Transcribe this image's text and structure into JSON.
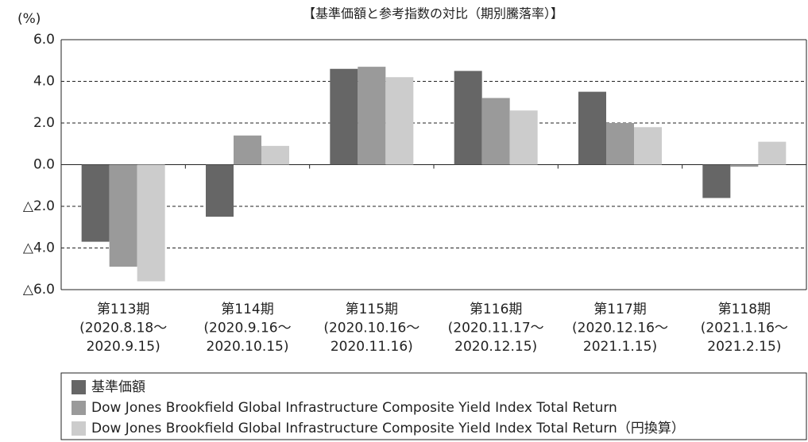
{
  "chart_data": {
    "type": "bar",
    "title": "【基準価額と参考指数の対比（期別騰落率）】",
    "y_axis_label": "(%)",
    "categories": [
      [
        "第113期",
        "(2020.8.18～",
        "2020.9.15)"
      ],
      [
        "第114期",
        "(2020.9.16～",
        "2020.10.15)"
      ],
      [
        "第115期",
        "(2020.10.16～",
        "2020.11.16)"
      ],
      [
        "第116期",
        "(2020.11.17～",
        "2020.12.15)"
      ],
      [
        "第117期",
        "(2020.12.16～",
        "2021.1.15)"
      ],
      [
        "第118期",
        "(2021.1.16～",
        "2021.2.15)"
      ]
    ],
    "series": [
      {
        "name": "基準価額",
        "color": "#666666",
        "values": [
          -3.7,
          -2.5,
          4.6,
          4.5,
          3.5,
          -1.6
        ]
      },
      {
        "name": "Dow Jones Brookfield Global Infrastructure Composite Yield Index Total Return",
        "color": "#9a9a9a",
        "values": [
          -4.9,
          1.4,
          4.7,
          3.2,
          2.0,
          -0.1
        ]
      },
      {
        "name": "Dow Jones Brookfield Global Infrastructure Composite Yield Index Total Return（円換算）",
        "color": "#cccccc",
        "values": [
          -5.6,
          0.9,
          4.2,
          2.6,
          1.8,
          1.1
        ]
      }
    ],
    "ylim": [
      -6,
      6
    ],
    "yticks": [
      {
        "value": 6,
        "label": "6.0"
      },
      {
        "value": 4,
        "label": "4.0"
      },
      {
        "value": 2,
        "label": "2.0"
      },
      {
        "value": 0,
        "label": "0.0"
      },
      {
        "value": -2,
        "label": "△2.0"
      },
      {
        "value": -4,
        "label": "△4.0"
      },
      {
        "value": -6,
        "label": "△6.0"
      }
    ],
    "grid": true
  }
}
